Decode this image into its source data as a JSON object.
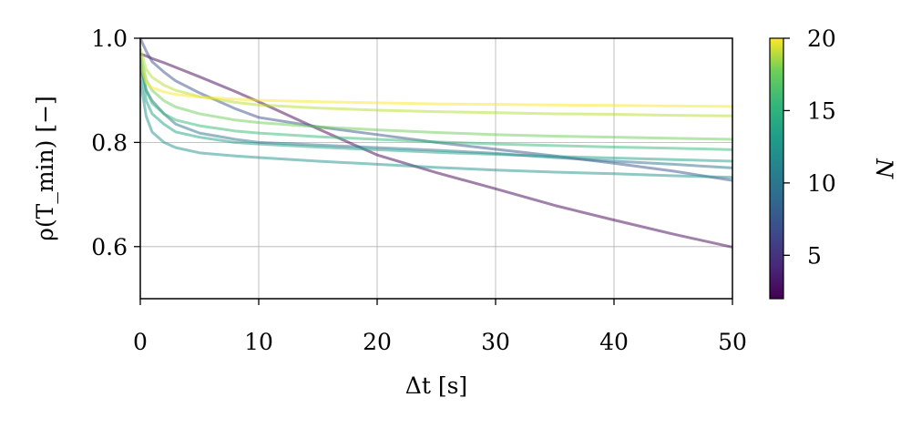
{
  "chart_data": {
    "type": "line",
    "xlabel": "Δt [s]",
    "ylabel": "ρ(T_min) [−]",
    "xlim": [
      0,
      50
    ],
    "ylim": [
      0.5,
      1.0
    ],
    "xticks": [
      0,
      10,
      20,
      30,
      40,
      50
    ],
    "xtick_labels": [
      "0",
      "10",
      "20",
      "30",
      "40",
      "50"
    ],
    "yticks": [
      0.6,
      0.8,
      1.0
    ],
    "ytick_labels": [
      "0.6",
      "0.8",
      "1.0"
    ],
    "grid": true,
    "colorbar": {
      "label": "N",
      "range": [
        2,
        20
      ],
      "ticks": [
        5,
        10,
        15,
        20
      ],
      "tick_labels": [
        "5",
        "10",
        "15",
        "20"
      ],
      "colormap": "viridis"
    },
    "series": [
      {
        "N": 2,
        "color": "#440154",
        "x": [
          0,
          0.5,
          1,
          2,
          3,
          5,
          8,
          10,
          15,
          20,
          25,
          30,
          35,
          40,
          45,
          50
        ],
        "y": [
          0.97,
          0.966,
          0.961,
          0.953,
          0.944,
          0.926,
          0.898,
          0.878,
          0.826,
          0.776,
          0.742,
          0.711,
          0.679,
          0.651,
          0.624,
          0.599
        ]
      },
      {
        "N": 4,
        "color": "#3b528b",
        "x": [
          0,
          0.5,
          1,
          2,
          3,
          5,
          8,
          10,
          15,
          20,
          25,
          30,
          35,
          40,
          45,
          50
        ],
        "y": [
          1.0,
          0.975,
          0.955,
          0.935,
          0.918,
          0.895,
          0.865,
          0.848,
          0.83,
          0.815,
          0.8,
          0.787,
          0.774,
          0.76,
          0.745,
          0.727
        ]
      },
      {
        "N": 6,
        "color": "#2c728e",
        "x": [
          0,
          0.5,
          1,
          2,
          3,
          5,
          8,
          10,
          15,
          20,
          25,
          30,
          35,
          40,
          45,
          50
        ],
        "y": [
          0.95,
          0.9,
          0.88,
          0.855,
          0.835,
          0.818,
          0.806,
          0.8,
          0.795,
          0.79,
          0.785,
          0.779,
          0.771,
          0.764,
          0.758,
          0.751
        ]
      },
      {
        "N": 7,
        "color": "#21918c",
        "x": [
          0,
          0.5,
          1,
          2,
          3,
          5,
          8,
          10,
          15,
          20,
          25,
          30,
          35,
          40,
          45,
          50
        ],
        "y": [
          0.92,
          0.85,
          0.82,
          0.8,
          0.79,
          0.78,
          0.774,
          0.771,
          0.764,
          0.758,
          0.752,
          0.747,
          0.743,
          0.74,
          0.736,
          0.733
        ]
      },
      {
        "N": 9,
        "color": "#1fa187",
        "x": [
          0,
          0.5,
          1,
          2,
          3,
          5,
          8,
          10,
          15,
          20,
          25,
          30,
          35,
          40,
          45,
          50
        ],
        "y": [
          0.95,
          0.88,
          0.855,
          0.835,
          0.82,
          0.81,
          0.8,
          0.797,
          0.791,
          0.786,
          0.781,
          0.777,
          0.773,
          0.77,
          0.767,
          0.764
        ]
      },
      {
        "N": 11,
        "color": "#35b779",
        "x": [
          0,
          0.5,
          1,
          2,
          3,
          5,
          8,
          10,
          15,
          20,
          25,
          30,
          35,
          40,
          45,
          50
        ],
        "y": [
          0.96,
          0.9,
          0.875,
          0.855,
          0.843,
          0.832,
          0.822,
          0.818,
          0.811,
          0.806,
          0.801,
          0.797,
          0.794,
          0.791,
          0.789,
          0.786
        ]
      },
      {
        "N": 13,
        "color": "#6ece58",
        "x": [
          0,
          0.5,
          1,
          2,
          3,
          5,
          8,
          10,
          15,
          20,
          25,
          30,
          35,
          40,
          45,
          50
        ],
        "y": [
          0.97,
          0.92,
          0.9,
          0.88,
          0.868,
          0.855,
          0.843,
          0.838,
          0.83,
          0.824,
          0.819,
          0.815,
          0.812,
          0.81,
          0.808,
          0.806
        ]
      },
      {
        "N": 16,
        "color": "#b5de2b",
        "x": [
          0,
          0.5,
          1,
          2,
          3,
          5,
          8,
          10,
          15,
          20,
          25,
          30,
          35,
          40,
          45,
          50
        ],
        "y": [
          0.98,
          0.94,
          0.925,
          0.91,
          0.9,
          0.888,
          0.877,
          0.872,
          0.866,
          0.862,
          0.859,
          0.857,
          0.855,
          0.854,
          0.852,
          0.851
        ]
      },
      {
        "N": 20,
        "color": "#fde725",
        "x": [
          0,
          0.5,
          1,
          2,
          3,
          5,
          8,
          10,
          15,
          20,
          25,
          30,
          35,
          40,
          45,
          50
        ],
        "y": [
          0.95,
          0.915,
          0.905,
          0.897,
          0.892,
          0.887,
          0.883,
          0.881,
          0.878,
          0.876,
          0.874,
          0.873,
          0.872,
          0.871,
          0.87,
          0.869
        ]
      }
    ]
  }
}
